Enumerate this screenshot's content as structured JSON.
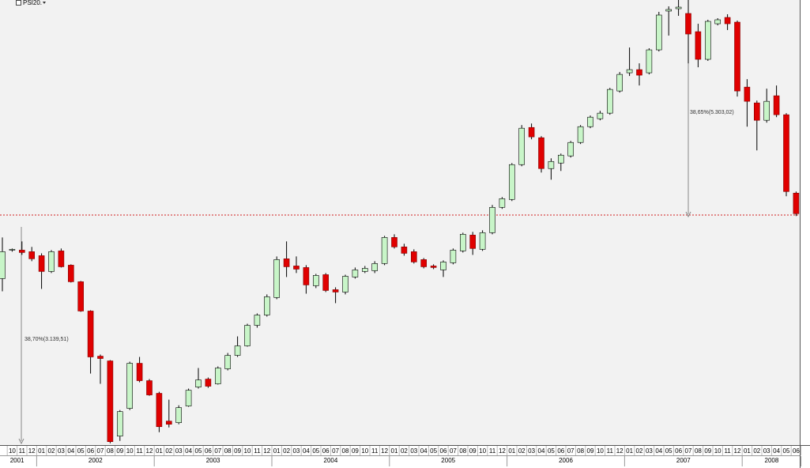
{
  "chart_data": {
    "type": "candlestick",
    "name": "PSI20.",
    "log_scale": true,
    "ylim": [
      4900,
      13800
    ],
    "up_color": "#c8f5c8",
    "down_color": "#e00000",
    "annotations": [
      "38,70%(3.139,51)",
      "38,65%(5.303,02)"
    ],
    "years": [
      "2001",
      "2002",
      "2003",
      "2004",
      "2005",
      "2006",
      "2007",
      "2008"
    ],
    "categories": [
      null,
      "10",
      "11",
      "12",
      "01",
      "02",
      "03",
      "04",
      "05",
      "06",
      "07",
      "08",
      "09",
      "10",
      "11",
      "12",
      "01",
      "02",
      "03",
      "04",
      "05",
      "06",
      "07",
      "08",
      "09",
      "10",
      "11",
      "12",
      "01",
      "02",
      "03",
      "04",
      "05",
      "06",
      "07",
      "08",
      "09",
      "10",
      "11",
      "12",
      "01",
      "02",
      "03",
      "04",
      "05",
      "06",
      "07",
      "08",
      "09",
      "10",
      "11",
      "12",
      "01",
      "02",
      "03",
      "04",
      "05",
      "06",
      "07",
      "08",
      "09",
      "10",
      "11",
      "12",
      "01",
      "02",
      "03",
      "04",
      "05",
      "06",
      "07",
      "08",
      "09",
      "10",
      "11",
      "12",
      "01",
      "02",
      "03",
      "04",
      "05",
      "06"
    ],
    "open": [
      7218,
      7712,
      7712,
      7684,
      7613,
      7338,
      7698,
      7447,
      7165,
      6693,
      6026,
      5960,
      5003,
      5336,
      5927,
      5692,
      5527,
      5181,
      5162,
      5366,
      5608,
      5713,
      5650,
      5851,
      6037,
      6172,
      6474,
      6631,
      6906,
      7558,
      7433,
      7406,
      7099,
      7284,
      7034,
      6995,
      7244,
      7338,
      7351,
      7475,
      7943,
      7770,
      7684,
      7544,
      7433,
      7365,
      7488,
      7698,
      7987,
      7726,
      8031,
      8519,
      8677,
      9409,
      10259,
      10017,
      9323,
      9444,
      9602,
      9907,
      10278,
      10469,
      10606,
      11167,
      11650,
      11736,
      11650,
      12289,
      13449,
      13523,
      13375,
      12820,
      12021,
      13058,
      13252,
      13107,
      11269,
      10862,
      10431,
      11044,
      10567,
      8806
    ],
    "high": [
      7943,
      7741,
      7870,
      7770,
      7655,
      7712,
      7741,
      7461,
      7178,
      6705,
      6048,
      5971,
      5316,
      5949,
      6015,
      5713,
      5547,
      5446,
      5375,
      5588,
      5862,
      5734,
      5884,
      6071,
      6310,
      6498,
      6656,
      6957,
      7599,
      7870,
      7599,
      7447,
      7298,
      7311,
      7073,
      7284,
      7406,
      7433,
      7516,
      7972,
      8002,
      7827,
      7726,
      7571,
      7461,
      7530,
      7741,
      8031,
      8046,
      8076,
      8566,
      8725,
      9444,
      10316,
      10354,
      10054,
      9548,
      9655,
      9943,
      10316,
      10547,
      10664,
      11249,
      11671,
      12356,
      11910,
      12334,
      13425,
      13598,
      13800,
      13800,
      13058,
      13180,
      13228,
      13350,
      13155,
      11479,
      10921,
      11228,
      11311,
      10606,
      8838
    ],
    "low": [
      7008,
      7684,
      7627,
      7516,
      7047,
      7311,
      7406,
      7152,
      6681,
      5787,
      5650,
      4921,
      4948,
      5316,
      5671,
      5496,
      5049,
      5105,
      5143,
      5356,
      5588,
      5598,
      5640,
      5830,
      6015,
      6161,
      6439,
      6607,
      6880,
      7244,
      7311,
      6969,
      7060,
      6995,
      6817,
      6957,
      7218,
      7311,
      7311,
      7447,
      7741,
      7613,
      7475,
      7392,
      7378,
      7244,
      7461,
      7669,
      7627,
      7698,
      8002,
      8488,
      8645,
      9374,
      9980,
      9237,
      9085,
      9271,
      9566,
      9871,
      10241,
      10431,
      10567,
      11126,
      11564,
      11311,
      11607,
      12244,
      12703,
      13301,
      11910,
      11801,
      11977,
      13010,
      12868,
      11024,
      10278,
      9726,
      10374,
      10508,
      8741,
      8348
    ],
    "close": [
      7684,
      7726,
      7669,
      7558,
      7338,
      7684,
      7419,
      7165,
      6693,
      6015,
      5993,
      4939,
      5297,
      5927,
      5692,
      5506,
      5114,
      5143,
      5346,
      5567,
      5702,
      5619,
      5862,
      6037,
      6172,
      6474,
      6631,
      6919,
      7544,
      7419,
      7378,
      7112,
      7271,
      7021,
      6995,
      7257,
      7365,
      7392,
      7475,
      7943,
      7770,
      7655,
      7502,
      7419,
      7406,
      7502,
      7712,
      8002,
      7741,
      8031,
      8519,
      8693,
      9409,
      10241,
      10036,
      9323,
      9478,
      9619,
      9907,
      10278,
      10508,
      10606,
      11208,
      11607,
      11736,
      11586,
      12289,
      13326,
      13499,
      13573,
      12750,
      12021,
      13131,
      13180,
      13058,
      11167,
      10902,
      10431,
      10902,
      10567,
      8838,
      8394
    ]
  }
}
